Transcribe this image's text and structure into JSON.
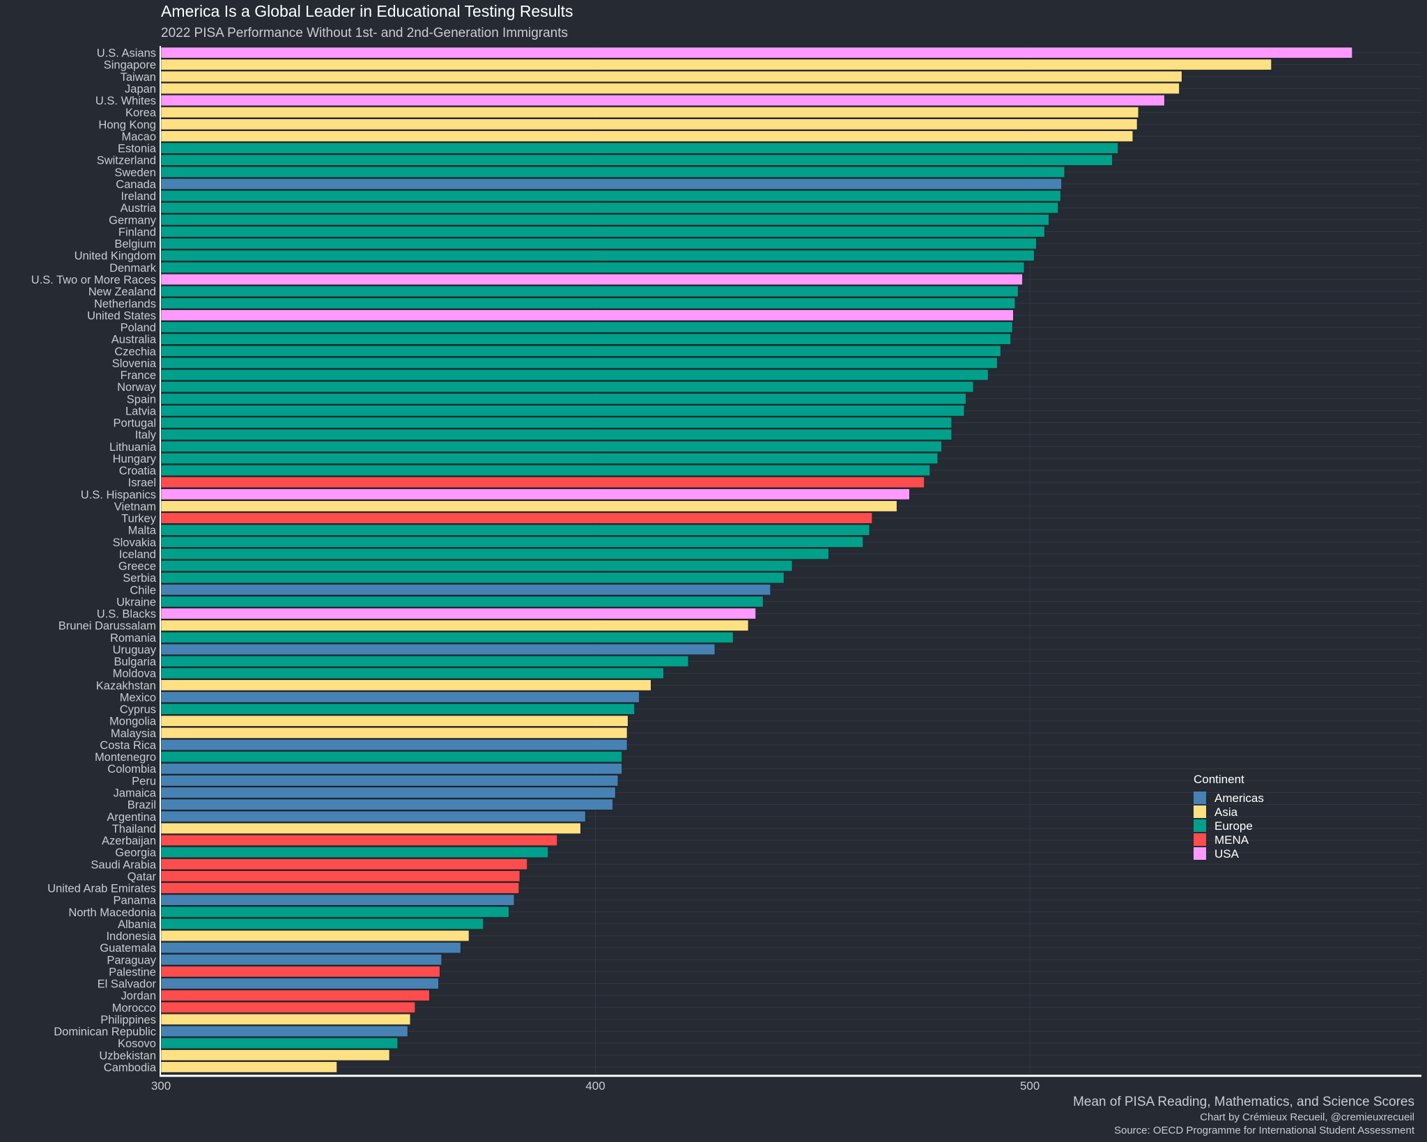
{
  "chart_data": {
    "type": "bar",
    "orientation": "horizontal",
    "title": "America Is a Global Leader in Educational Testing Results",
    "subtitle": "2022 PISA Performance Without 1st- and 2nd-Generation Immigrants",
    "xlabel": "Mean of PISA Reading, Mathematics, and Science Scores",
    "caption": [
      "Chart by Crémieux Recueil, @cremieuxrecueil",
      "Source: OECD Programme for International Student Assessment"
    ],
    "xlim": [
      300,
      590
    ],
    "xticks": [
      300,
      400,
      500
    ],
    "legend": {
      "title": "Continent",
      "placement": "right",
      "entries": [
        {
          "name": "Americas",
          "color": "#4682b4"
        },
        {
          "name": "Asia",
          "color": "#ffe082"
        },
        {
          "name": "Europe",
          "color": "#00a08a"
        },
        {
          "name": "MENA",
          "color": "#ff4c4c"
        },
        {
          "name": "USA",
          "color": "#ff99ff"
        }
      ]
    },
    "bars": [
      {
        "label": "U.S. Asians",
        "value": 574.2,
        "group": "USA"
      },
      {
        "label": "Singapore",
        "value": 555.6,
        "group": "Asia"
      },
      {
        "label": "Taiwan",
        "value": 535.0,
        "group": "Asia"
      },
      {
        "label": "Japan",
        "value": 534.4,
        "group": "Asia"
      },
      {
        "label": "U.S. Whites",
        "value": 531.0,
        "group": "USA"
      },
      {
        "label": "Korea",
        "value": 525.0,
        "group": "Asia"
      },
      {
        "label": "Hong Kong",
        "value": 524.7,
        "group": "Asia"
      },
      {
        "label": "Macao",
        "value": 523.7,
        "group": "Asia"
      },
      {
        "label": "Estonia",
        "value": 520.3,
        "group": "Europe"
      },
      {
        "label": "Switzerland",
        "value": 519.0,
        "group": "Europe"
      },
      {
        "label": "Sweden",
        "value": 508.0,
        "group": "Europe"
      },
      {
        "label": "Canada",
        "value": 507.3,
        "group": "Americas"
      },
      {
        "label": "Ireland",
        "value": 507.1,
        "group": "Europe"
      },
      {
        "label": "Austria",
        "value": 506.5,
        "group": "Europe"
      },
      {
        "label": "Germany",
        "value": 504.4,
        "group": "Europe"
      },
      {
        "label": "Finland",
        "value": 503.4,
        "group": "Europe"
      },
      {
        "label": "Belgium",
        "value": 501.5,
        "group": "Europe"
      },
      {
        "label": "United Kingdom",
        "value": 501.0,
        "group": "Europe"
      },
      {
        "label": "Denmark",
        "value": 498.7,
        "group": "Europe"
      },
      {
        "label": "U.S. Two or More Races",
        "value": 498.3,
        "group": "USA"
      },
      {
        "label": "New Zealand",
        "value": 497.3,
        "group": "Europe"
      },
      {
        "label": "Netherlands",
        "value": 496.6,
        "group": "Europe"
      },
      {
        "label": "United States",
        "value": 496.2,
        "group": "USA"
      },
      {
        "label": "Poland",
        "value": 496.0,
        "group": "Europe"
      },
      {
        "label": "Australia",
        "value": 495.6,
        "group": "Europe"
      },
      {
        "label": "Czechia",
        "value": 493.3,
        "group": "Europe"
      },
      {
        "label": "Slovenia",
        "value": 492.5,
        "group": "Europe"
      },
      {
        "label": "France",
        "value": 490.4,
        "group": "Europe"
      },
      {
        "label": "Norway",
        "value": 487.0,
        "group": "Europe"
      },
      {
        "label": "Spain",
        "value": 485.3,
        "group": "Europe"
      },
      {
        "label": "Latvia",
        "value": 484.9,
        "group": "Europe"
      },
      {
        "label": "Portugal",
        "value": 482.0,
        "group": "Europe"
      },
      {
        "label": "Italy",
        "value": 482.0,
        "group": "Europe"
      },
      {
        "label": "Lithuania",
        "value": 479.7,
        "group": "Europe"
      },
      {
        "label": "Hungary",
        "value": 478.8,
        "group": "Europe"
      },
      {
        "label": "Croatia",
        "value": 477.0,
        "group": "Europe"
      },
      {
        "label": "Israel",
        "value": 475.7,
        "group": "MENA"
      },
      {
        "label": "U.S. Hispanics",
        "value": 472.3,
        "group": "USA"
      },
      {
        "label": "Vietnam",
        "value": 469.4,
        "group": "Asia"
      },
      {
        "label": "Turkey",
        "value": 463.7,
        "group": "MENA"
      },
      {
        "label": "Malta",
        "value": 463.1,
        "group": "Europe"
      },
      {
        "label": "Slovakia",
        "value": 461.6,
        "group": "Europe"
      },
      {
        "label": "Iceland",
        "value": 453.7,
        "group": "Europe"
      },
      {
        "label": "Greece",
        "value": 445.3,
        "group": "Europe"
      },
      {
        "label": "Serbia",
        "value": 443.4,
        "group": "Europe"
      },
      {
        "label": "Chile",
        "value": 440.3,
        "group": "Americas"
      },
      {
        "label": "Ukraine",
        "value": 438.6,
        "group": "Europe"
      },
      {
        "label": "U.S. Blacks",
        "value": 436.9,
        "group": "USA"
      },
      {
        "label": "Brunei Darussalam",
        "value": 435.2,
        "group": "Asia"
      },
      {
        "label": "Romania",
        "value": 431.7,
        "group": "Europe"
      },
      {
        "label": "Uruguay",
        "value": 427.5,
        "group": "Americas"
      },
      {
        "label": "Bulgaria",
        "value": 421.4,
        "group": "Europe"
      },
      {
        "label": "Moldova",
        "value": 415.7,
        "group": "Europe"
      },
      {
        "label": "Kazakhstan",
        "value": 412.8,
        "group": "Asia"
      },
      {
        "label": "Mexico",
        "value": 410.1,
        "group": "Americas"
      },
      {
        "label": "Cyprus",
        "value": 409.0,
        "group": "Europe"
      },
      {
        "label": "Mongolia",
        "value": 407.5,
        "group": "Asia"
      },
      {
        "label": "Malaysia",
        "value": 407.3,
        "group": "Asia"
      },
      {
        "label": "Costa Rica",
        "value": 407.3,
        "group": "Americas"
      },
      {
        "label": "Montenegro",
        "value": 406.1,
        "group": "Europe"
      },
      {
        "label": "Colombia",
        "value": 406.1,
        "group": "Americas"
      },
      {
        "label": "Peru",
        "value": 405.2,
        "group": "Americas"
      },
      {
        "label": "Jamaica",
        "value": 404.6,
        "group": "Americas"
      },
      {
        "label": "Brazil",
        "value": 404.0,
        "group": "Americas"
      },
      {
        "label": "Argentina",
        "value": 397.7,
        "group": "Americas"
      },
      {
        "label": "Thailand",
        "value": 396.6,
        "group": "Asia"
      },
      {
        "label": "Azerbaijan",
        "value": 391.2,
        "group": "MENA"
      },
      {
        "label": "Georgia",
        "value": 389.1,
        "group": "Europe"
      },
      {
        "label": "Saudi Arabia",
        "value": 384.3,
        "group": "MENA"
      },
      {
        "label": "Qatar",
        "value": 382.6,
        "group": "MENA"
      },
      {
        "label": "United Arab Emirates",
        "value": 382.4,
        "group": "MENA"
      },
      {
        "label": "Panama",
        "value": 381.3,
        "group": "Americas"
      },
      {
        "label": "North Macedonia",
        "value": 380.1,
        "group": "Europe"
      },
      {
        "label": "Albania",
        "value": 374.2,
        "group": "Europe"
      },
      {
        "label": "Indonesia",
        "value": 370.9,
        "group": "Asia"
      },
      {
        "label": "Guatemala",
        "value": 369.0,
        "group": "Americas"
      },
      {
        "label": "Paraguay",
        "value": 364.6,
        "group": "Americas"
      },
      {
        "label": "Palestine",
        "value": 364.2,
        "group": "MENA"
      },
      {
        "label": "El Salvador",
        "value": 363.9,
        "group": "Americas"
      },
      {
        "label": "Jordan",
        "value": 361.8,
        "group": "MENA"
      },
      {
        "label": "Morocco",
        "value": 358.5,
        "group": "MENA"
      },
      {
        "label": "Philippines",
        "value": 357.4,
        "group": "Asia"
      },
      {
        "label": "Dominican Republic",
        "value": 356.8,
        "group": "Americas"
      },
      {
        "label": "Kosovo",
        "value": 354.5,
        "group": "Europe"
      },
      {
        "label": "Uzbekistan",
        "value": 352.6,
        "group": "Asia"
      },
      {
        "label": "Cambodia",
        "value": 340.5,
        "group": "Asia"
      }
    ]
  }
}
